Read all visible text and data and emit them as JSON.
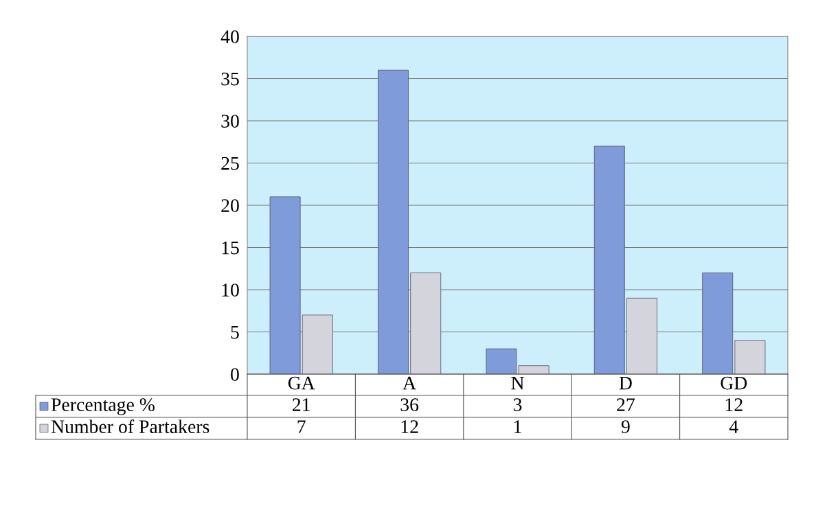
{
  "chart_data": {
    "type": "bar",
    "categories": [
      "GA",
      "A",
      "N",
      "D",
      "GD"
    ],
    "series": [
      {
        "name": "Percentage %",
        "color": "#7f9bd9",
        "values": [
          21,
          36,
          3,
          27,
          12
        ]
      },
      {
        "name": "Number of Partakers",
        "color": "#d4d4dc",
        "values": [
          7,
          12,
          1,
          9,
          4
        ]
      }
    ],
    "ylim": [
      0,
      40
    ],
    "yticks": [
      0,
      5,
      10,
      15,
      20,
      25,
      30,
      35,
      40
    ],
    "grid": "y",
    "data_labels": true,
    "legend": "bottom"
  }
}
